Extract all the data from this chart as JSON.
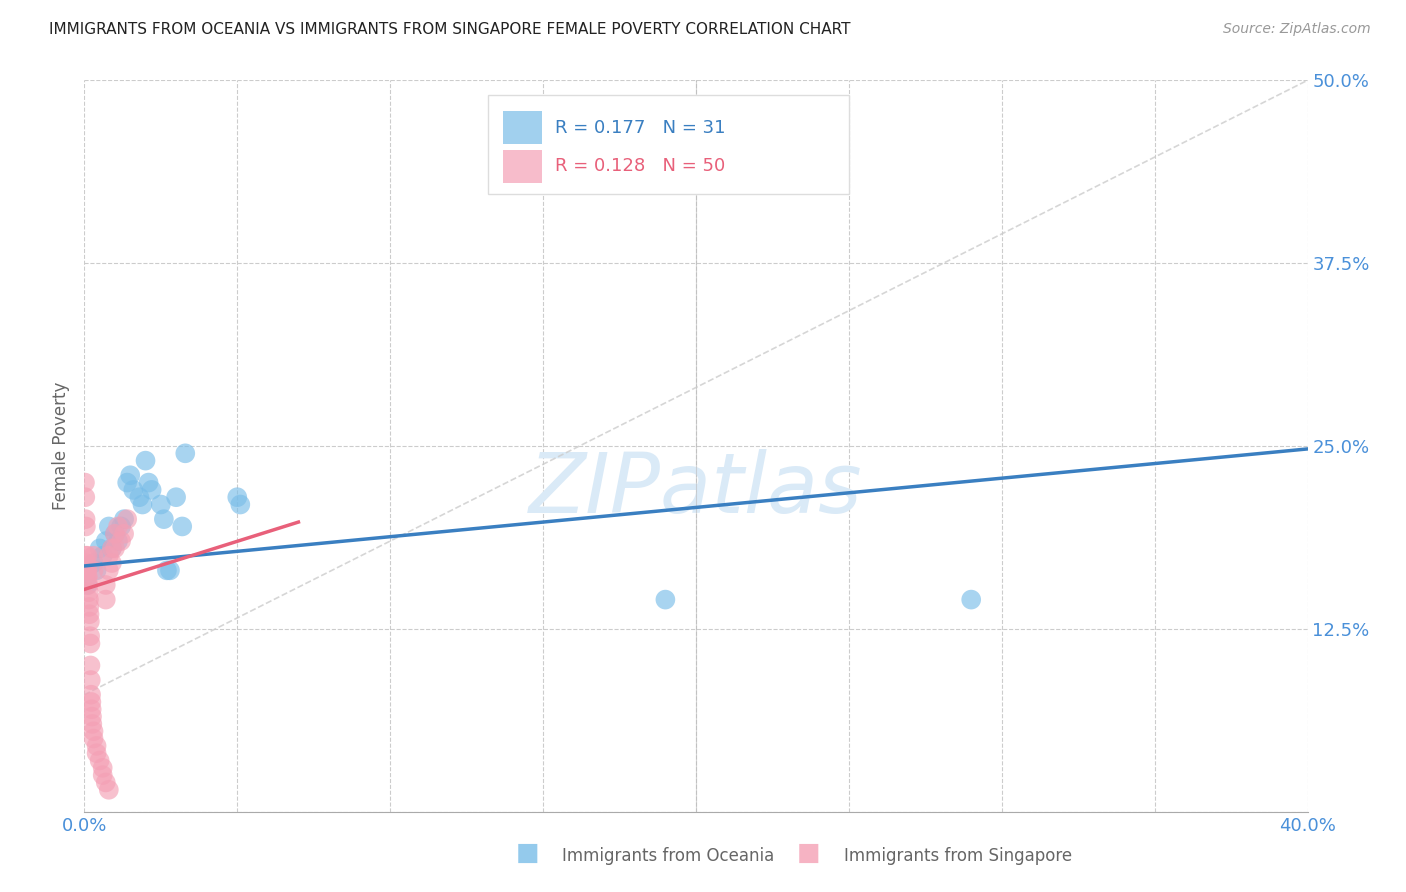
{
  "title": "IMMIGRANTS FROM OCEANIA VS IMMIGRANTS FROM SINGAPORE FEMALE POVERTY CORRELATION CHART",
  "source": "Source: ZipAtlas.com",
  "xlabel_blue": "Immigrants from Oceania",
  "xlabel_pink": "Immigrants from Singapore",
  "ylabel": "Female Poverty",
  "legend_blue_R": "0.177",
  "legend_blue_N": "31",
  "legend_pink_R": "0.128",
  "legend_pink_N": "50",
  "xmin": 0.0,
  "xmax": 0.4,
  "ymin": 0.0,
  "ymax": 0.5,
  "yticks": [
    0.0,
    0.125,
    0.25,
    0.375,
    0.5
  ],
  "ytick_labels": [
    "",
    "12.5%",
    "25.0%",
    "37.5%",
    "50.0%"
  ],
  "background_color": "#ffffff",
  "blue_color": "#7abde8",
  "pink_color": "#f4a0b5",
  "blue_line_color": "#3a7fc1",
  "pink_line_color": "#e8607a",
  "dashed_line_color": "#cccccc",
  "tick_color": "#4a90d9",
  "watermark_text": "ZIPatlas",
  "watermark_color": "#daeaf7",
  "blue_scatter": [
    [
      0.001,
      0.155
    ],
    [
      0.003,
      0.17
    ],
    [
      0.004,
      0.165
    ],
    [
      0.005,
      0.18
    ],
    [
      0.006,
      0.175
    ],
    [
      0.007,
      0.185
    ],
    [
      0.008,
      0.195
    ],
    [
      0.009,
      0.18
    ],
    [
      0.01,
      0.19
    ],
    [
      0.011,
      0.185
    ],
    [
      0.012,
      0.195
    ],
    [
      0.013,
      0.2
    ],
    [
      0.014,
      0.225
    ],
    [
      0.015,
      0.23
    ],
    [
      0.016,
      0.22
    ],
    [
      0.018,
      0.215
    ],
    [
      0.019,
      0.21
    ],
    [
      0.02,
      0.24
    ],
    [
      0.021,
      0.225
    ],
    [
      0.022,
      0.22
    ],
    [
      0.025,
      0.21
    ],
    [
      0.026,
      0.2
    ],
    [
      0.027,
      0.165
    ],
    [
      0.028,
      0.165
    ],
    [
      0.03,
      0.215
    ],
    [
      0.032,
      0.195
    ],
    [
      0.033,
      0.245
    ],
    [
      0.05,
      0.215
    ],
    [
      0.051,
      0.21
    ],
    [
      0.19,
      0.145
    ],
    [
      0.29,
      0.145
    ]
  ],
  "pink_scatter": [
    [
      0.0002,
      0.225
    ],
    [
      0.0003,
      0.215
    ],
    [
      0.0004,
      0.2
    ],
    [
      0.0005,
      0.195
    ],
    [
      0.0005,
      0.175
    ],
    [
      0.0006,
      0.17
    ],
    [
      0.0007,
      0.165
    ],
    [
      0.0008,
      0.165
    ],
    [
      0.0009,
      0.16
    ],
    [
      0.001,
      0.175
    ],
    [
      0.001,
      0.165
    ],
    [
      0.0012,
      0.16
    ],
    [
      0.0013,
      0.155
    ],
    [
      0.0014,
      0.15
    ],
    [
      0.0015,
      0.145
    ],
    [
      0.0016,
      0.14
    ],
    [
      0.0017,
      0.135
    ],
    [
      0.0018,
      0.13
    ],
    [
      0.0019,
      0.12
    ],
    [
      0.002,
      0.115
    ],
    [
      0.002,
      0.1
    ],
    [
      0.0021,
      0.09
    ],
    [
      0.0022,
      0.08
    ],
    [
      0.0023,
      0.075
    ],
    [
      0.0024,
      0.07
    ],
    [
      0.0025,
      0.065
    ],
    [
      0.0026,
      0.06
    ],
    [
      0.003,
      0.055
    ],
    [
      0.003,
      0.05
    ],
    [
      0.004,
      0.045
    ],
    [
      0.004,
      0.04
    ],
    [
      0.005,
      0.035
    ],
    [
      0.006,
      0.03
    ],
    [
      0.006,
      0.025
    ],
    [
      0.007,
      0.02
    ],
    [
      0.008,
      0.015
    ],
    [
      0.003,
      0.175
    ],
    [
      0.003,
      0.165
    ],
    [
      0.007,
      0.155
    ],
    [
      0.007,
      0.145
    ],
    [
      0.008,
      0.175
    ],
    [
      0.008,
      0.165
    ],
    [
      0.009,
      0.18
    ],
    [
      0.009,
      0.17
    ],
    [
      0.01,
      0.19
    ],
    [
      0.01,
      0.18
    ],
    [
      0.011,
      0.195
    ],
    [
      0.012,
      0.185
    ],
    [
      0.013,
      0.19
    ],
    [
      0.014,
      0.2
    ]
  ],
  "blue_line": {
    "x0": 0.0,
    "y0": 0.168,
    "x1": 0.4,
    "y1": 0.248
  },
  "pink_line": {
    "x0": 0.0,
    "y0": 0.152,
    "x1": 0.07,
    "y1": 0.198
  },
  "dashed_line": {
    "x0": 0.0,
    "y0": 0.08,
    "x1": 0.4,
    "y1": 0.5
  }
}
